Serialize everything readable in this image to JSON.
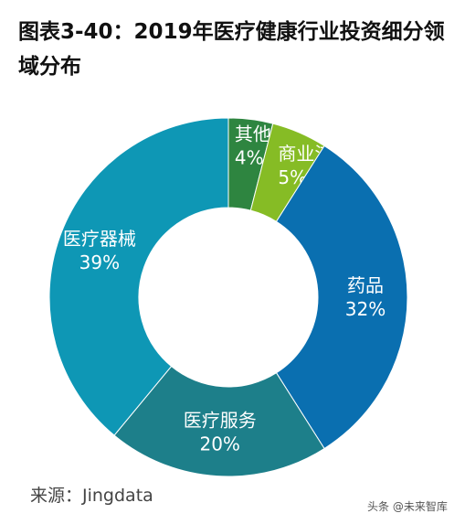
{
  "title": "图表3-40：2019年医疗健康行业投资细分领域分布",
  "source": "来源：Jingdata",
  "watermark": "头条 @未来智库",
  "chart_data": {
    "type": "pie",
    "donut": true,
    "slices": [
      {
        "label": "其他",
        "value": 4,
        "value_label": "4%",
        "color": "#2e8540"
      },
      {
        "label": "商业流通",
        "value": 5,
        "value_label": "5%",
        "color": "#86bc25"
      },
      {
        "label": "药品",
        "value": 32,
        "value_label": "32%",
        "color": "#0a6fb0"
      },
      {
        "label": "医疗服务",
        "value": 20,
        "value_label": "20%",
        "color": "#1d7f8a"
      },
      {
        "label": "医疗器械",
        "value": 39,
        "value_label": "39%",
        "color": "#0e97b5"
      }
    ]
  }
}
